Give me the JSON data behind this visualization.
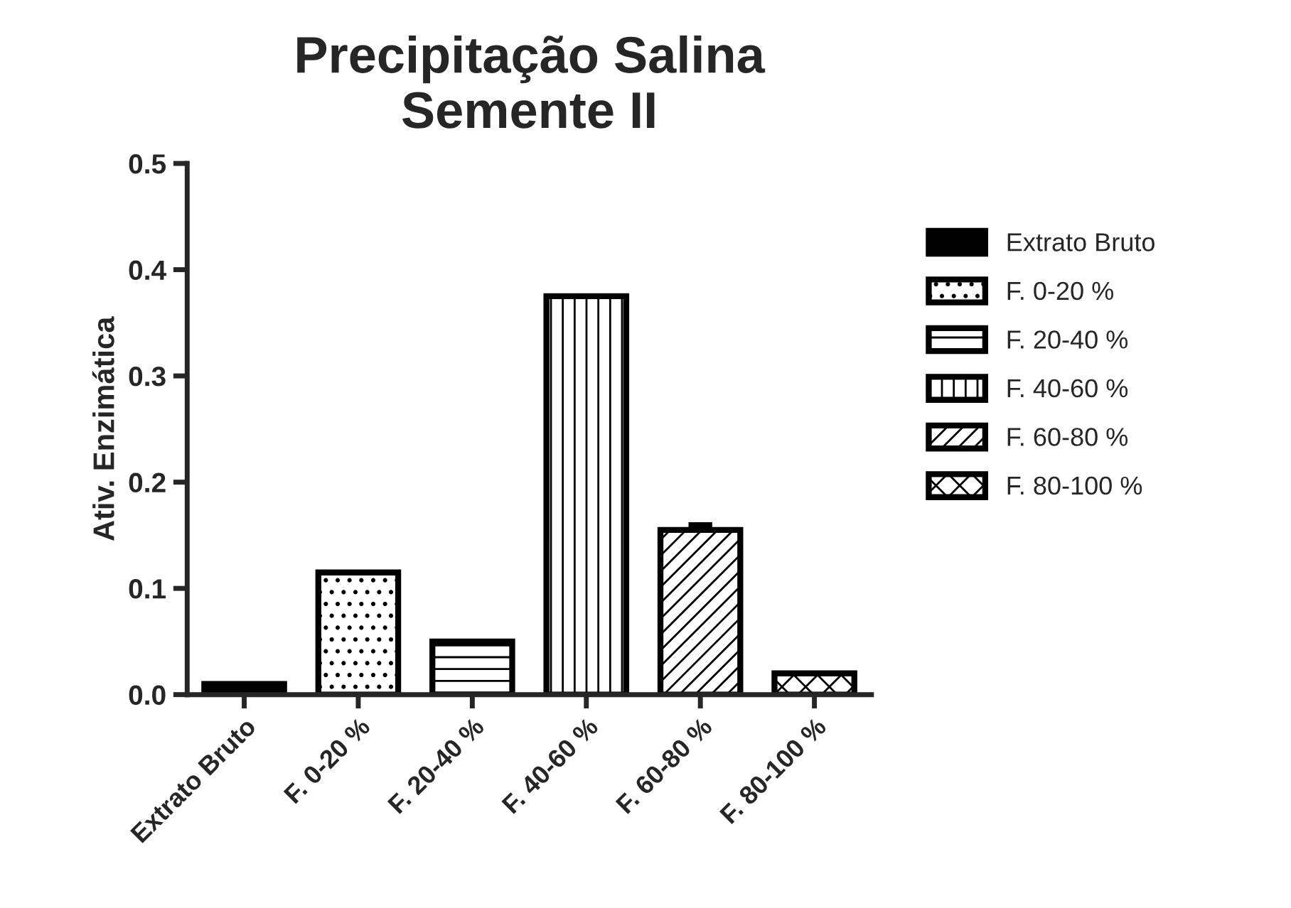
{
  "chart_data": {
    "type": "bar",
    "title": "Precipitação Salina\nSemente II",
    "ylabel": "Ativ. Enzimática",
    "categories": [
      "Extrato Bruto",
      "F. 0-20 %",
      "F. 20-40 %",
      "F. 40-60 %",
      "F. 60-80 %",
      "F. 80-100 %"
    ],
    "series": [
      {
        "name": "Extrato Bruto",
        "color": "#000000",
        "values": [
          0.01,
          null,
          null,
          null,
          null,
          null
        ]
      },
      {
        "name": "F. 0-20 %",
        "color": "#000000",
        "values": [
          null,
          0.115,
          null,
          null,
          null,
          null
        ]
      },
      {
        "name": "F. 20-40 %",
        "color": "#000000",
        "values": [
          null,
          null,
          0.05,
          null,
          null,
          null
        ]
      },
      {
        "name": "F. 40-60 %",
        "color": "#000000",
        "values": [
          null,
          null,
          null,
          0.375,
          null,
          null
        ]
      },
      {
        "name": "F. 60-80 %",
        "color": "#000000",
        "values": [
          null,
          null,
          null,
          null,
          0.155,
          null
        ],
        "errors": [
          null,
          null,
          null,
          null,
          0.005,
          null
        ]
      },
      {
        "name": "F. 80-100 %",
        "color": "#000000",
        "values": [
          null,
          null,
          null,
          null,
          null,
          0.02
        ]
      }
    ],
    "ylim": [
      0,
      0.5
    ],
    "yticks": [
      {
        "value": 0,
        "label": "0.0"
      },
      0.1,
      0.2,
      0.3,
      0.4,
      0.5
    ],
    "grid": false,
    "legend": "right"
  }
}
